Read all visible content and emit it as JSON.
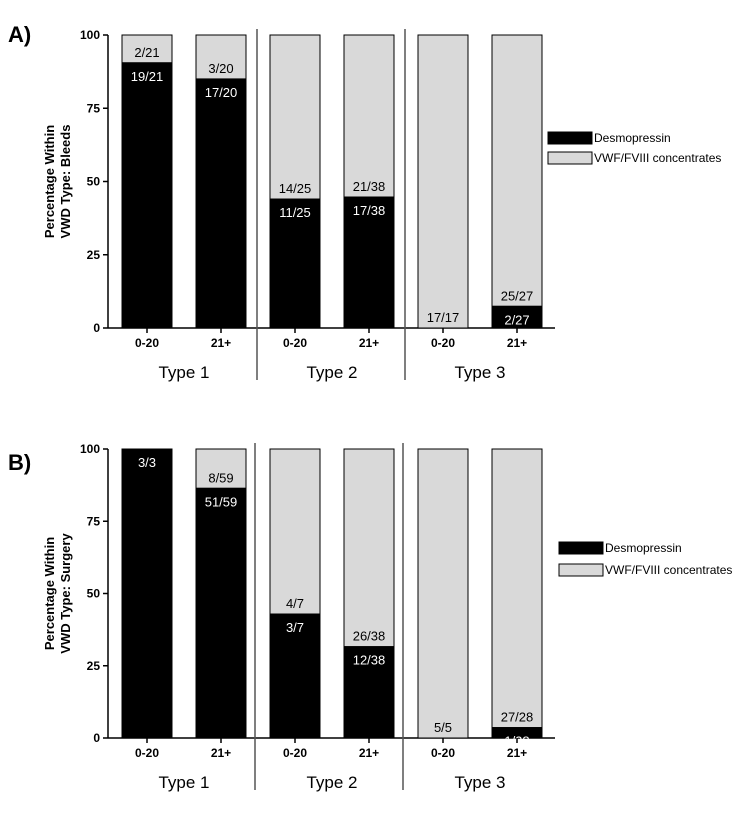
{
  "colors": {
    "desmopressin": "#000000",
    "concentrates": "#d9d9d9",
    "axis": "#000000",
    "divider": "#555555"
  },
  "legend": {
    "items": [
      "Desmopressin",
      "VWF/FVIII concentrates"
    ]
  },
  "chart_data": [
    {
      "panel": "A)",
      "type": "bar",
      "stacked": true,
      "ylabel": [
        "Percentage Within",
        "VWD Type: Bleeds"
      ],
      "ylim": [
        0,
        100
      ],
      "yticks": [
        0,
        25,
        50,
        75,
        100
      ],
      "groups": [
        "Type 1",
        "Type 2",
        "Type 3"
      ],
      "categories": [
        "0-20",
        "21+",
        "0-20",
        "21+",
        "0-20",
        "21+"
      ],
      "series": [
        {
          "name": "Desmopressin",
          "values": [
            90.5,
            85.0,
            44.0,
            44.7,
            0,
            7.4
          ],
          "labels": [
            "19/21",
            "17/20",
            "11/25",
            "17/38",
            "",
            "2/27"
          ]
        },
        {
          "name": "VWF/FVIII concentrates",
          "values": [
            9.5,
            15.0,
            56.0,
            55.3,
            100,
            92.6
          ],
          "labels": [
            "2/21",
            "3/20",
            "14/25",
            "21/38",
            "17/17",
            "25/27"
          ]
        }
      ],
      "legend_position": "right"
    },
    {
      "panel": "B)",
      "type": "bar",
      "stacked": true,
      "ylabel": [
        "Percentage Within",
        "VWD Type: Surgery"
      ],
      "ylim": [
        0,
        100
      ],
      "yticks": [
        0,
        25,
        50,
        75,
        100
      ],
      "groups": [
        "Type 1",
        "Type 2",
        "Type 3"
      ],
      "categories": [
        "0-20",
        "21+",
        "0-20",
        "21+",
        "0-20",
        "21+"
      ],
      "series": [
        {
          "name": "Desmopressin",
          "values": [
            100,
            86.4,
            42.9,
            31.6,
            0,
            3.6
          ],
          "labels": [
            "3/3",
            "51/59",
            "3/7",
            "12/38",
            "",
            "1/28"
          ]
        },
        {
          "name": "VWF/FVIII concentrates",
          "values": [
            0,
            13.6,
            57.1,
            68.4,
            100,
            96.4
          ],
          "labels": [
            "",
            "8/59",
            "4/7",
            "26/38",
            "5/5",
            "27/28"
          ]
        }
      ],
      "legend_position": "right"
    }
  ]
}
